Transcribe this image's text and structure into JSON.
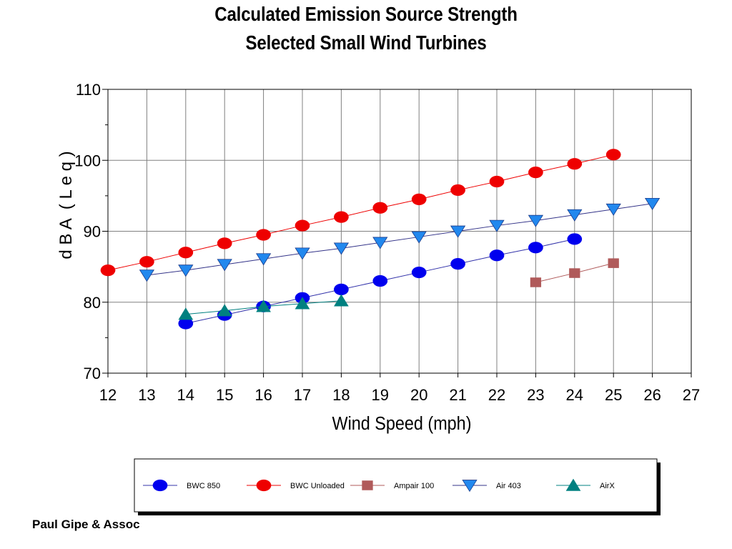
{
  "title_line1": "Calculated Emission Source Strength",
  "title_line2": "Selected Small Wind Turbines",
  "footer": "Paul Gipe & Assoc",
  "chart_data": {
    "type": "line",
    "xlabel": "Wind Speed (mph)",
    "ylabel": "d B A  ( L e q )",
    "xlim": [
      12,
      27
    ],
    "ylim": [
      70,
      110
    ],
    "x_ticks": [
      12,
      13,
      14,
      15,
      16,
      17,
      18,
      19,
      20,
      21,
      22,
      23,
      24,
      25,
      26,
      27
    ],
    "y_ticks": [
      70,
      80,
      90,
      100,
      110
    ],
    "grid": true,
    "legend_position": "bottom",
    "series": [
      {
        "name": "BWC 850",
        "marker": "circle",
        "color": "#0000ee",
        "line_color": "#3333aa",
        "x": [
          14,
          15,
          16,
          17,
          18,
          19,
          20,
          21,
          22,
          23,
          24
        ],
        "y": [
          77.0,
          78.2,
          79.4,
          80.6,
          81.8,
          83.0,
          84.2,
          85.4,
          86.6,
          87.7,
          88.9
        ]
      },
      {
        "name": "BWC Unloaded",
        "marker": "circle",
        "color": "#ee0000",
        "line_color": "#ee0000",
        "x": [
          12,
          13,
          14,
          15,
          16,
          17,
          18,
          19,
          20,
          21,
          22,
          23,
          24,
          25
        ],
        "y": [
          84.5,
          85.7,
          87.0,
          88.3,
          89.5,
          90.8,
          92.0,
          93.3,
          94.5,
          95.8,
          97.0,
          98.3,
          99.5,
          100.8
        ]
      },
      {
        "name": "Ampair 100",
        "marker": "square",
        "color": "#b05a5a",
        "line_color": "#b05a5a",
        "x": [
          23,
          24,
          25
        ],
        "y": [
          82.8,
          84.1,
          85.5
        ]
      },
      {
        "name": "Air 403",
        "marker": "triangle-down",
        "color": "#2288ee",
        "line_color": "#333388",
        "x": [
          13,
          14,
          15,
          16,
          17,
          18,
          19,
          20,
          21,
          22,
          23,
          24,
          25,
          26
        ],
        "y": [
          83.8,
          84.5,
          85.3,
          86.1,
          86.9,
          87.6,
          88.4,
          89.2,
          90.0,
          90.8,
          91.5,
          92.3,
          93.1,
          93.9
        ]
      },
      {
        "name": "AirX",
        "marker": "triangle-up",
        "color": "#008080",
        "line_color": "#008080",
        "x": [
          14,
          15,
          16,
          17,
          18
        ],
        "y": [
          78.3,
          78.8,
          79.4,
          79.8,
          80.2
        ]
      }
    ]
  }
}
